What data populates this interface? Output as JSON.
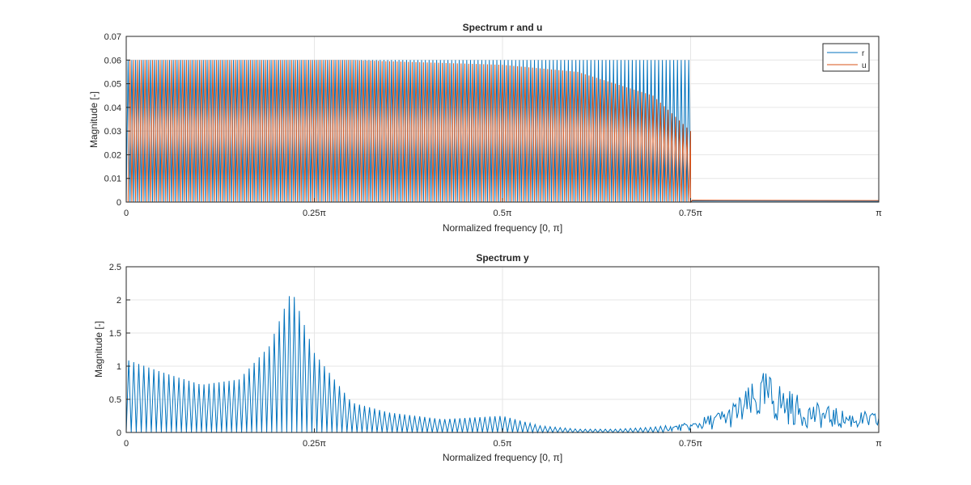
{
  "colors": {
    "r": "#0072BD",
    "u": "#D95319",
    "grid": "#e6e6e6",
    "axis": "#262626"
  },
  "chart_data": [
    {
      "type": "line",
      "title": "Spectrum r and u",
      "xlabel": "Normalized frequency [0, π]",
      "ylabel": "Magnitude [-]",
      "xlim": [
        0,
        1
      ],
      "ylim": [
        0,
        0.07
      ],
      "grid": true,
      "legend_location": "top-right",
      "x_tick_labels": [
        "0",
        "0.25π",
        "0.5π",
        "0.75π",
        "π"
      ],
      "y_tick_labels": [
        "0",
        "0.01",
        "0.02",
        "0.03",
        "0.04",
        "0.05",
        "0.06",
        "0.07"
      ],
      "description_note": "x in units of π (normalized frequency)",
      "series": [
        {
          "name": "r",
          "color": "#0072BD",
          "teeth": 150,
          "peak": 0.06,
          "floor_after": 0.0005,
          "cutoff": 0.75
        },
        {
          "name": "u",
          "color": "#D95319",
          "teeth": 150,
          "peak_profile": [
            [
              0,
              0.06
            ],
            [
              0.3,
              0.06
            ],
            [
              0.5,
              0.058
            ],
            [
              0.6,
              0.055
            ],
            [
              0.7,
              0.045
            ],
            [
              0.75,
              0.03
            ]
          ],
          "floor_after": 0.0008,
          "cutoff": 0.75
        }
      ]
    },
    {
      "type": "line",
      "title": "Spectrum y",
      "xlabel": "Normalized frequency [0, π]",
      "ylabel": "Magnitude [-]",
      "xlim": [
        0,
        1
      ],
      "ylim": [
        0,
        2.5
      ],
      "grid": true,
      "x_tick_labels": [
        "0",
        "0.25π",
        "0.5π",
        "0.75π",
        "π"
      ],
      "y_tick_labels": [
        "0",
        "0.5",
        "1",
        "1.5",
        "2",
        "2.5"
      ],
      "series": [
        {
          "name": "y",
          "color": "#0072BD",
          "teeth": 150,
          "envelope": [
            [
              0,
              1.1
            ],
            [
              0.05,
              0.9
            ],
            [
              0.1,
              0.72
            ],
            [
              0.15,
              0.8
            ],
            [
              0.19,
              1.3
            ],
            [
              0.22,
              2.15
            ],
            [
              0.25,
              1.2
            ],
            [
              0.3,
              0.45
            ],
            [
              0.35,
              0.3
            ],
            [
              0.42,
              0.2
            ],
            [
              0.5,
              0.25
            ],
            [
              0.55,
              0.1
            ],
            [
              0.6,
              0.05
            ],
            [
              0.65,
              0.05
            ],
            [
              0.7,
              0.08
            ],
            [
              0.75,
              0.15
            ],
            [
              0.8,
              0.4
            ],
            [
              0.85,
              0.95
            ],
            [
              0.9,
              0.5
            ],
            [
              0.95,
              0.35
            ],
            [
              1.0,
              0.3
            ]
          ]
        }
      ]
    }
  ]
}
